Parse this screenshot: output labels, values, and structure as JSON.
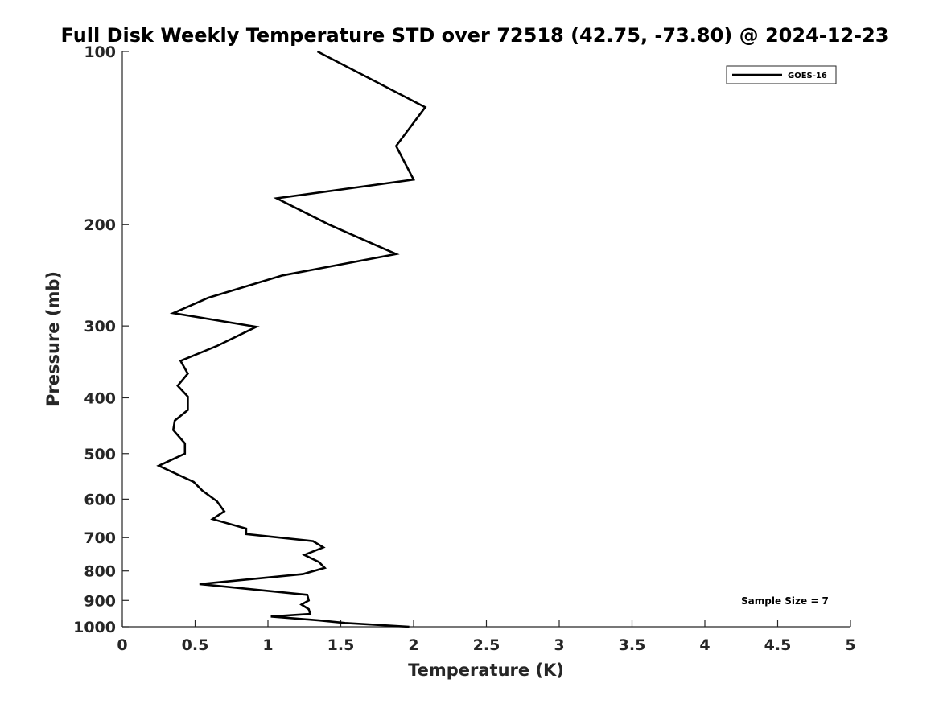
{
  "chart_data": {
    "type": "line",
    "title": "Full Disk Weekly Temperature STD over 72518 (42.75, -73.80) @ 2024-12-23",
    "xlabel": "Temperature (K)",
    "ylabel": "Pressure (mb)",
    "xlim": [
      0,
      5
    ],
    "ylim": [
      100,
      1000
    ],
    "yscale": "log",
    "y_reversed": true,
    "grid": false,
    "xticks": [
      0,
      0.5,
      1,
      1.5,
      2,
      2.5,
      3,
      3.5,
      4,
      4.5,
      5
    ],
    "xtick_labels": [
      "0",
      "0.5",
      "1",
      "1.5",
      "2",
      "2.5",
      "3",
      "3.5",
      "4",
      "4.5",
      "5"
    ],
    "yticks": [
      100,
      200,
      300,
      400,
      500,
      600,
      700,
      800,
      900,
      1000
    ],
    "ytick_labels": [
      "100",
      "200",
      "300",
      "400",
      "500",
      "600",
      "700",
      "800",
      "900",
      "1000"
    ],
    "legend_position": "top-right",
    "series": [
      {
        "name": "GOES-16",
        "color": "#000000",
        "points": [
          [
            1.34,
            100
          ],
          [
            2.08,
            125
          ],
          [
            1.88,
            146
          ],
          [
            2.0,
            167
          ],
          [
            1.06,
            180
          ],
          [
            1.42,
            200
          ],
          [
            1.88,
            225
          ],
          [
            1.1,
            245
          ],
          [
            0.59,
            268
          ],
          [
            0.35,
            285
          ],
          [
            0.92,
            301
          ],
          [
            0.65,
            325
          ],
          [
            0.4,
            345
          ],
          [
            0.45,
            363
          ],
          [
            0.38,
            381
          ],
          [
            0.45,
            398
          ],
          [
            0.45,
            420
          ],
          [
            0.36,
            438
          ],
          [
            0.35,
            455
          ],
          [
            0.43,
            480
          ],
          [
            0.43,
            500
          ],
          [
            0.25,
            525
          ],
          [
            0.49,
            560
          ],
          [
            0.55,
            580
          ],
          [
            0.65,
            605
          ],
          [
            0.7,
            630
          ],
          [
            0.62,
            650
          ],
          [
            0.85,
            675
          ],
          [
            0.85,
            690
          ],
          [
            1.31,
            710
          ],
          [
            1.38,
            728
          ],
          [
            1.25,
            750
          ],
          [
            1.35,
            772
          ],
          [
            1.39,
            790
          ],
          [
            1.24,
            810
          ],
          [
            0.53,
            843
          ],
          [
            1.27,
            880
          ],
          [
            1.28,
            900
          ],
          [
            1.23,
            915
          ],
          [
            1.28,
            932
          ],
          [
            1.29,
            950
          ],
          [
            1.02,
            960
          ],
          [
            1.35,
            975
          ],
          [
            1.53,
            985
          ],
          [
            1.97,
            1000
          ]
        ]
      }
    ],
    "annotation": "Sample Size = 7"
  }
}
